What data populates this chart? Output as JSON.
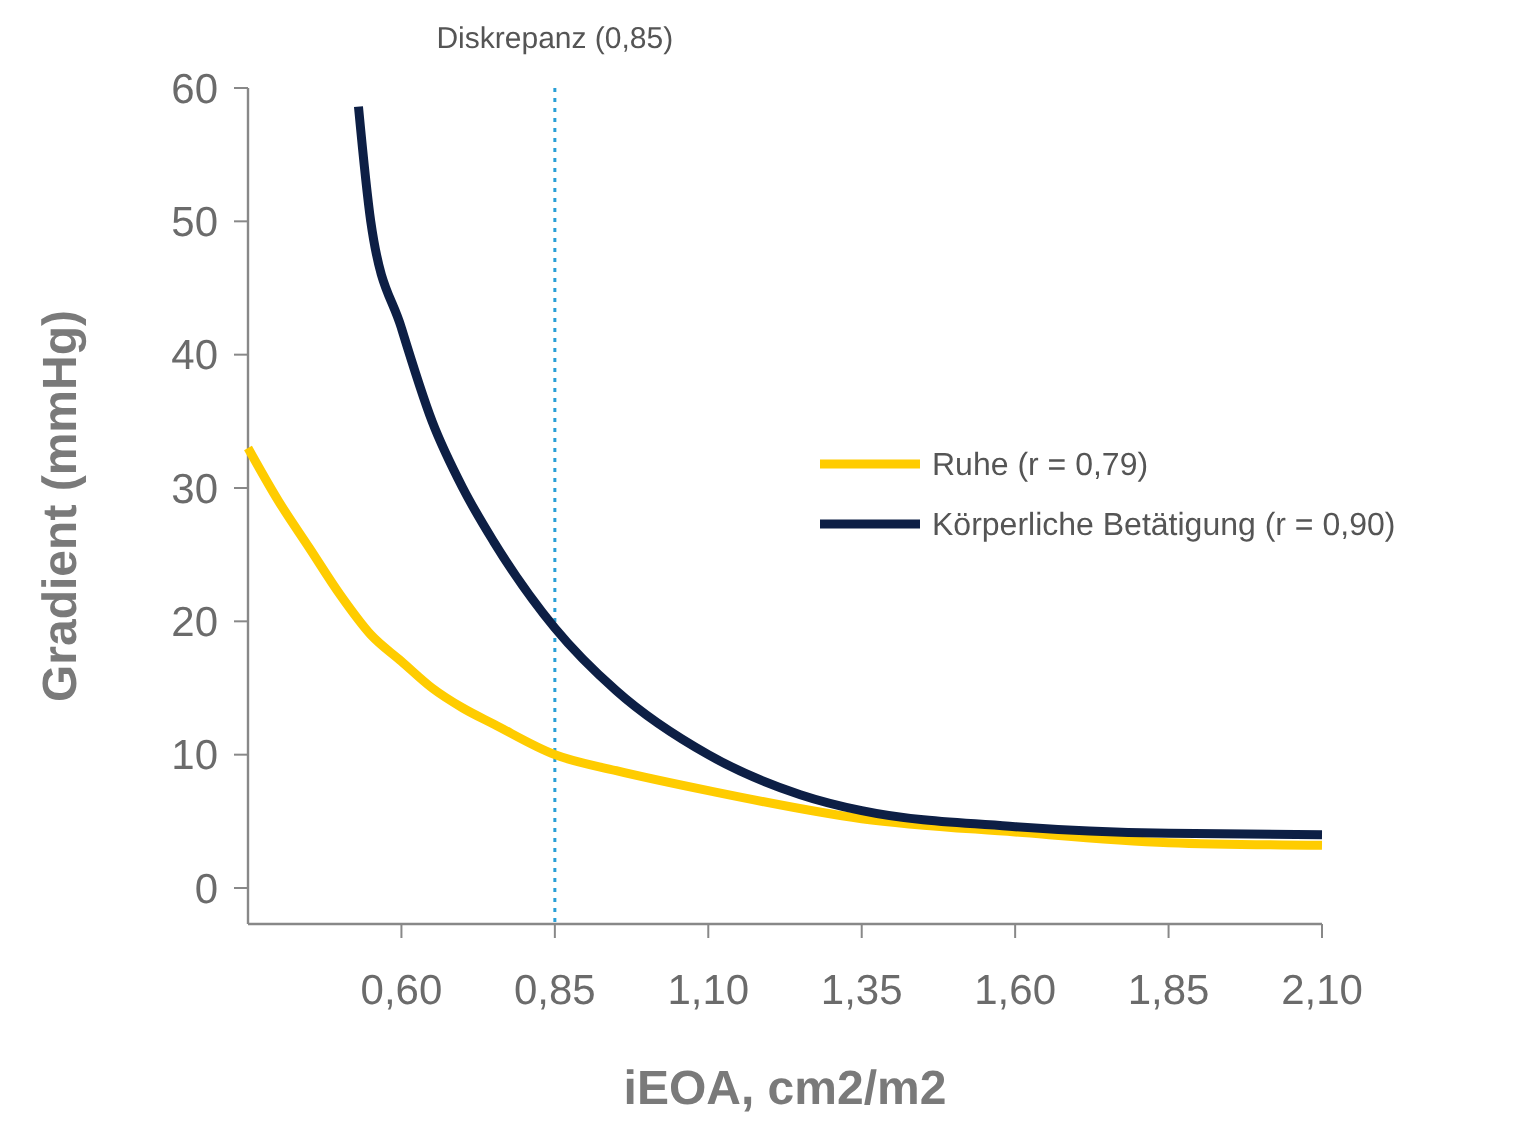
{
  "chart_data": {
    "type": "line",
    "xlabel": "iEOA, cm2/m2",
    "ylabel": "Gradient (mmHg)",
    "xlim": [
      0.35,
      2.1
    ],
    "ylim": [
      -2.7,
      60
    ],
    "xticks": [
      {
        "value": 0.6,
        "label": "0,60"
      },
      {
        "value": 0.85,
        "label": "0,85"
      },
      {
        "value": 1.1,
        "label": "1,10"
      },
      {
        "value": 1.35,
        "label": "1,35"
      },
      {
        "value": 1.6,
        "label": "1,60"
      },
      {
        "value": 1.85,
        "label": "1,85"
      },
      {
        "value": 2.1,
        "label": "2,10"
      }
    ],
    "yticks": [
      0,
      10,
      20,
      30,
      40,
      50,
      60
    ],
    "grid": false,
    "legend": "right",
    "marker": "none",
    "line_style": "solid",
    "ref_lines": [
      {
        "axis": "x",
        "value": 0.85,
        "label": "Diskrepanz (0,85)",
        "color": "#2a9fd6",
        "line_style": "dotted"
      }
    ],
    "series": [
      {
        "name": "Ruhe (r = 0,79)",
        "color": "#ffcc00",
        "x": [
          0.35,
          0.4,
          0.45,
          0.5,
          0.55,
          0.6,
          0.65,
          0.7,
          0.75,
          0.85,
          0.95,
          1.1,
          1.35,
          1.6,
          1.85,
          2.1
        ],
        "values": [
          33,
          29,
          25.5,
          22,
          19,
          17,
          15,
          13.5,
          12.3,
          10,
          8.8,
          7.3,
          5.2,
          4.2,
          3.4,
          3.2
        ]
      },
      {
        "name": "Körperliche Betätigung (r = 0,90)",
        "color": "#0d1f45",
        "x": [
          0.53,
          0.55,
          0.6,
          0.65,
          0.7,
          0.75,
          0.85,
          0.95,
          1.1,
          1.25,
          1.35,
          1.6,
          1.85,
          2.1
        ],
        "values": [
          58.6,
          50,
          42,
          35,
          30,
          26,
          19.5,
          14.8,
          10,
          7,
          5.8,
          4.6,
          4.1,
          4
        ]
      }
    ]
  }
}
